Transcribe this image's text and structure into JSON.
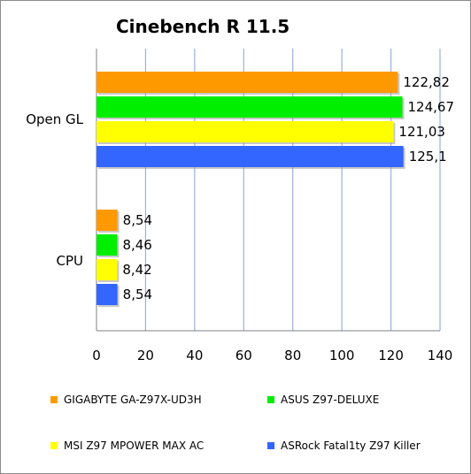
{
  "chart_data": {
    "type": "bar",
    "orientation": "horizontal",
    "title": "Cinebench R 11.5",
    "categories": [
      "Open GL",
      "CPU"
    ],
    "series": [
      {
        "name": "GIGABYTE GA-Z97X-UD3H",
        "color": "#ff9900",
        "values": [
          122.82,
          8.54
        ],
        "labels": [
          "122,82",
          "8,54"
        ]
      },
      {
        "name": "ASUS Z97-DELUXE",
        "color": "#00ee00",
        "values": [
          124.67,
          8.46
        ],
        "labels": [
          "124,67",
          "8,46"
        ]
      },
      {
        "name": "MSI Z97 MPOWER MAX AC",
        "color": "#ffff00",
        "values": [
          121.03,
          8.42
        ],
        "labels": [
          "121,03",
          "8,42"
        ]
      },
      {
        "name": "ASRock Fatal1ty Z97 Killer",
        "color": "#3366ff",
        "values": [
          125.1,
          8.54
        ],
        "labels": [
          "125,1",
          "8,54"
        ]
      }
    ],
    "xlim": [
      0,
      140
    ],
    "xticks": [
      0,
      20,
      40,
      60,
      80,
      100,
      120,
      140
    ],
    "grid": true,
    "legend": "bottom"
  }
}
